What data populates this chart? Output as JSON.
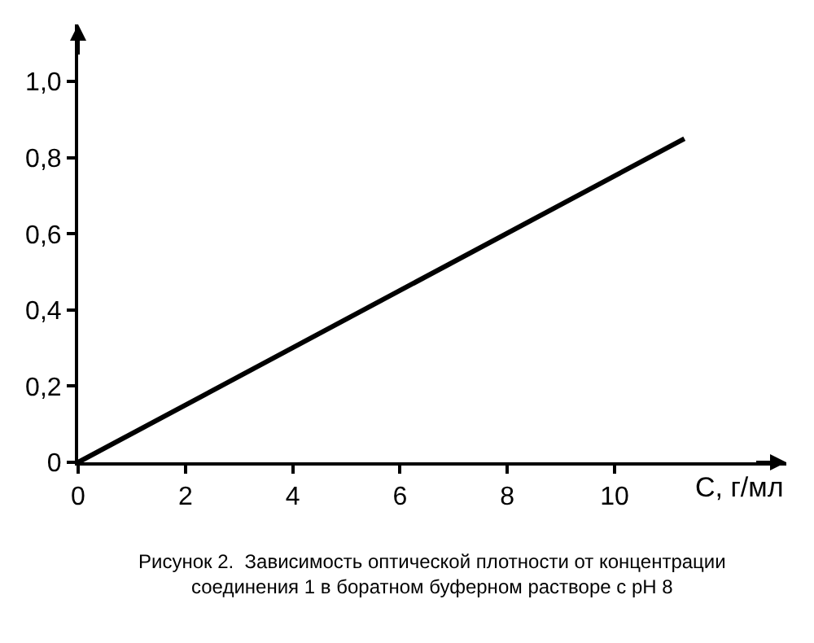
{
  "chart_data": {
    "type": "line",
    "title": "Рисунок 2.  Зависимость оптической плотности от концентрации соединения 1 в боратном буферном растворе с pH 8",
    "xlabel": "C, г/мл",
    "x": [
      0,
      11.3
    ],
    "series": [
      {
        "color": "#000000",
        "values": [
          0,
          0.85
        ]
      }
    ],
    "xlim": [
      0,
      13.2
    ],
    "ylim": [
      0,
      1.15
    ],
    "xticks": [
      0,
      2,
      4,
      6,
      8,
      10
    ],
    "yticks": [
      0,
      {
        "value": 0.2,
        "label": "0,2"
      },
      {
        "value": 0.4,
        "label": "0,4"
      },
      {
        "value": 0.6,
        "label": "0,6"
      },
      {
        "value": 0.8,
        "label": "0,8"
      },
      {
        "value": 1.0,
        "label": "1,0"
      }
    ],
    "marker": "none",
    "line_style": "solid"
  }
}
